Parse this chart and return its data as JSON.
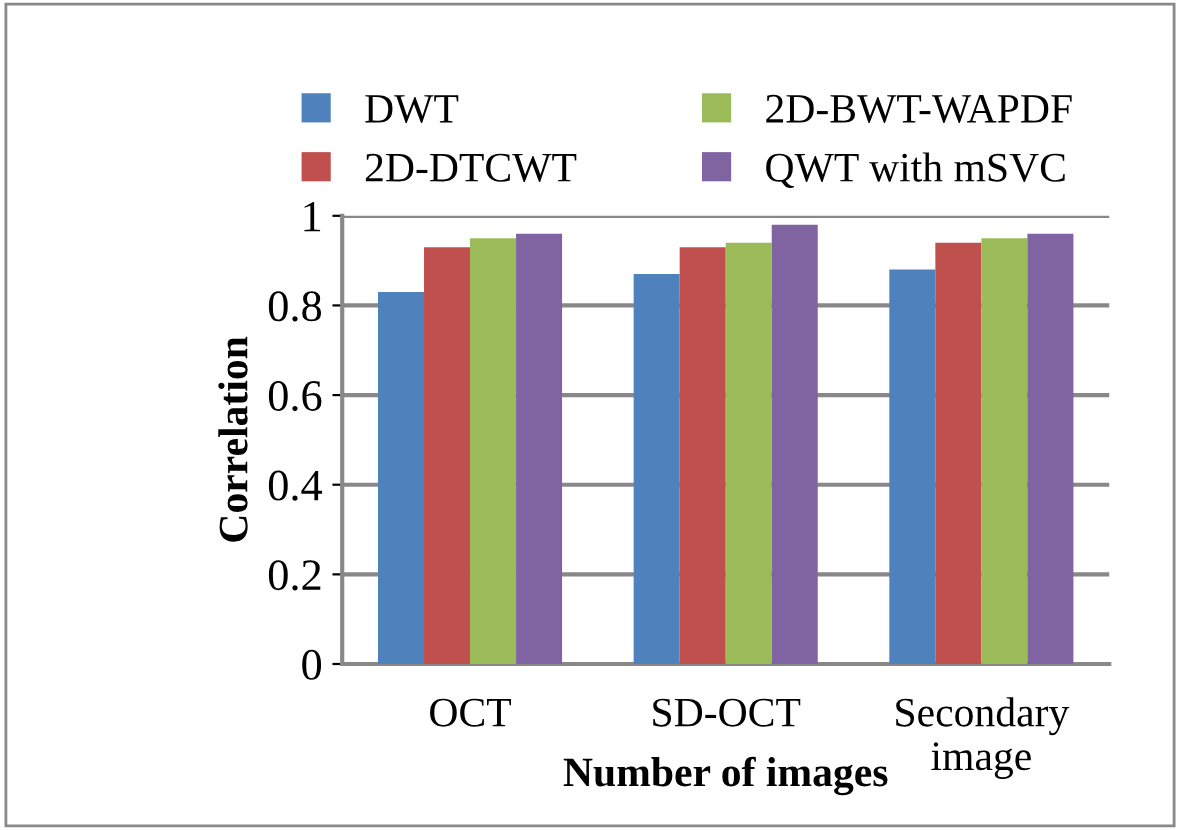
{
  "chart_data": {
    "type": "bar",
    "xlabel": "Number of images",
    "ylabel": "Correlation",
    "categories": [
      "OCT",
      "SD-OCT",
      "Secondary\nimage"
    ],
    "series": [
      {
        "name": "DWT",
        "color": "#4f81bd",
        "values": [
          0.83,
          0.87,
          0.88
        ]
      },
      {
        "name": "2D-DTCWT",
        "color": "#c0504d",
        "values": [
          0.93,
          0.93,
          0.94
        ]
      },
      {
        "name": "2D-BWT-WAPDF",
        "color": "#9bbb59",
        "values": [
          0.95,
          0.94,
          0.95
        ]
      },
      {
        "name": "QWT with mSVC",
        "color": "#8064a2",
        "values": [
          0.96,
          0.98,
          0.96
        ]
      }
    ],
    "ylim": [
      0,
      1
    ],
    "yticks": [
      0,
      0.2,
      0.4,
      0.6,
      0.8,
      1
    ],
    "grid": "y",
    "legend": "top"
  }
}
